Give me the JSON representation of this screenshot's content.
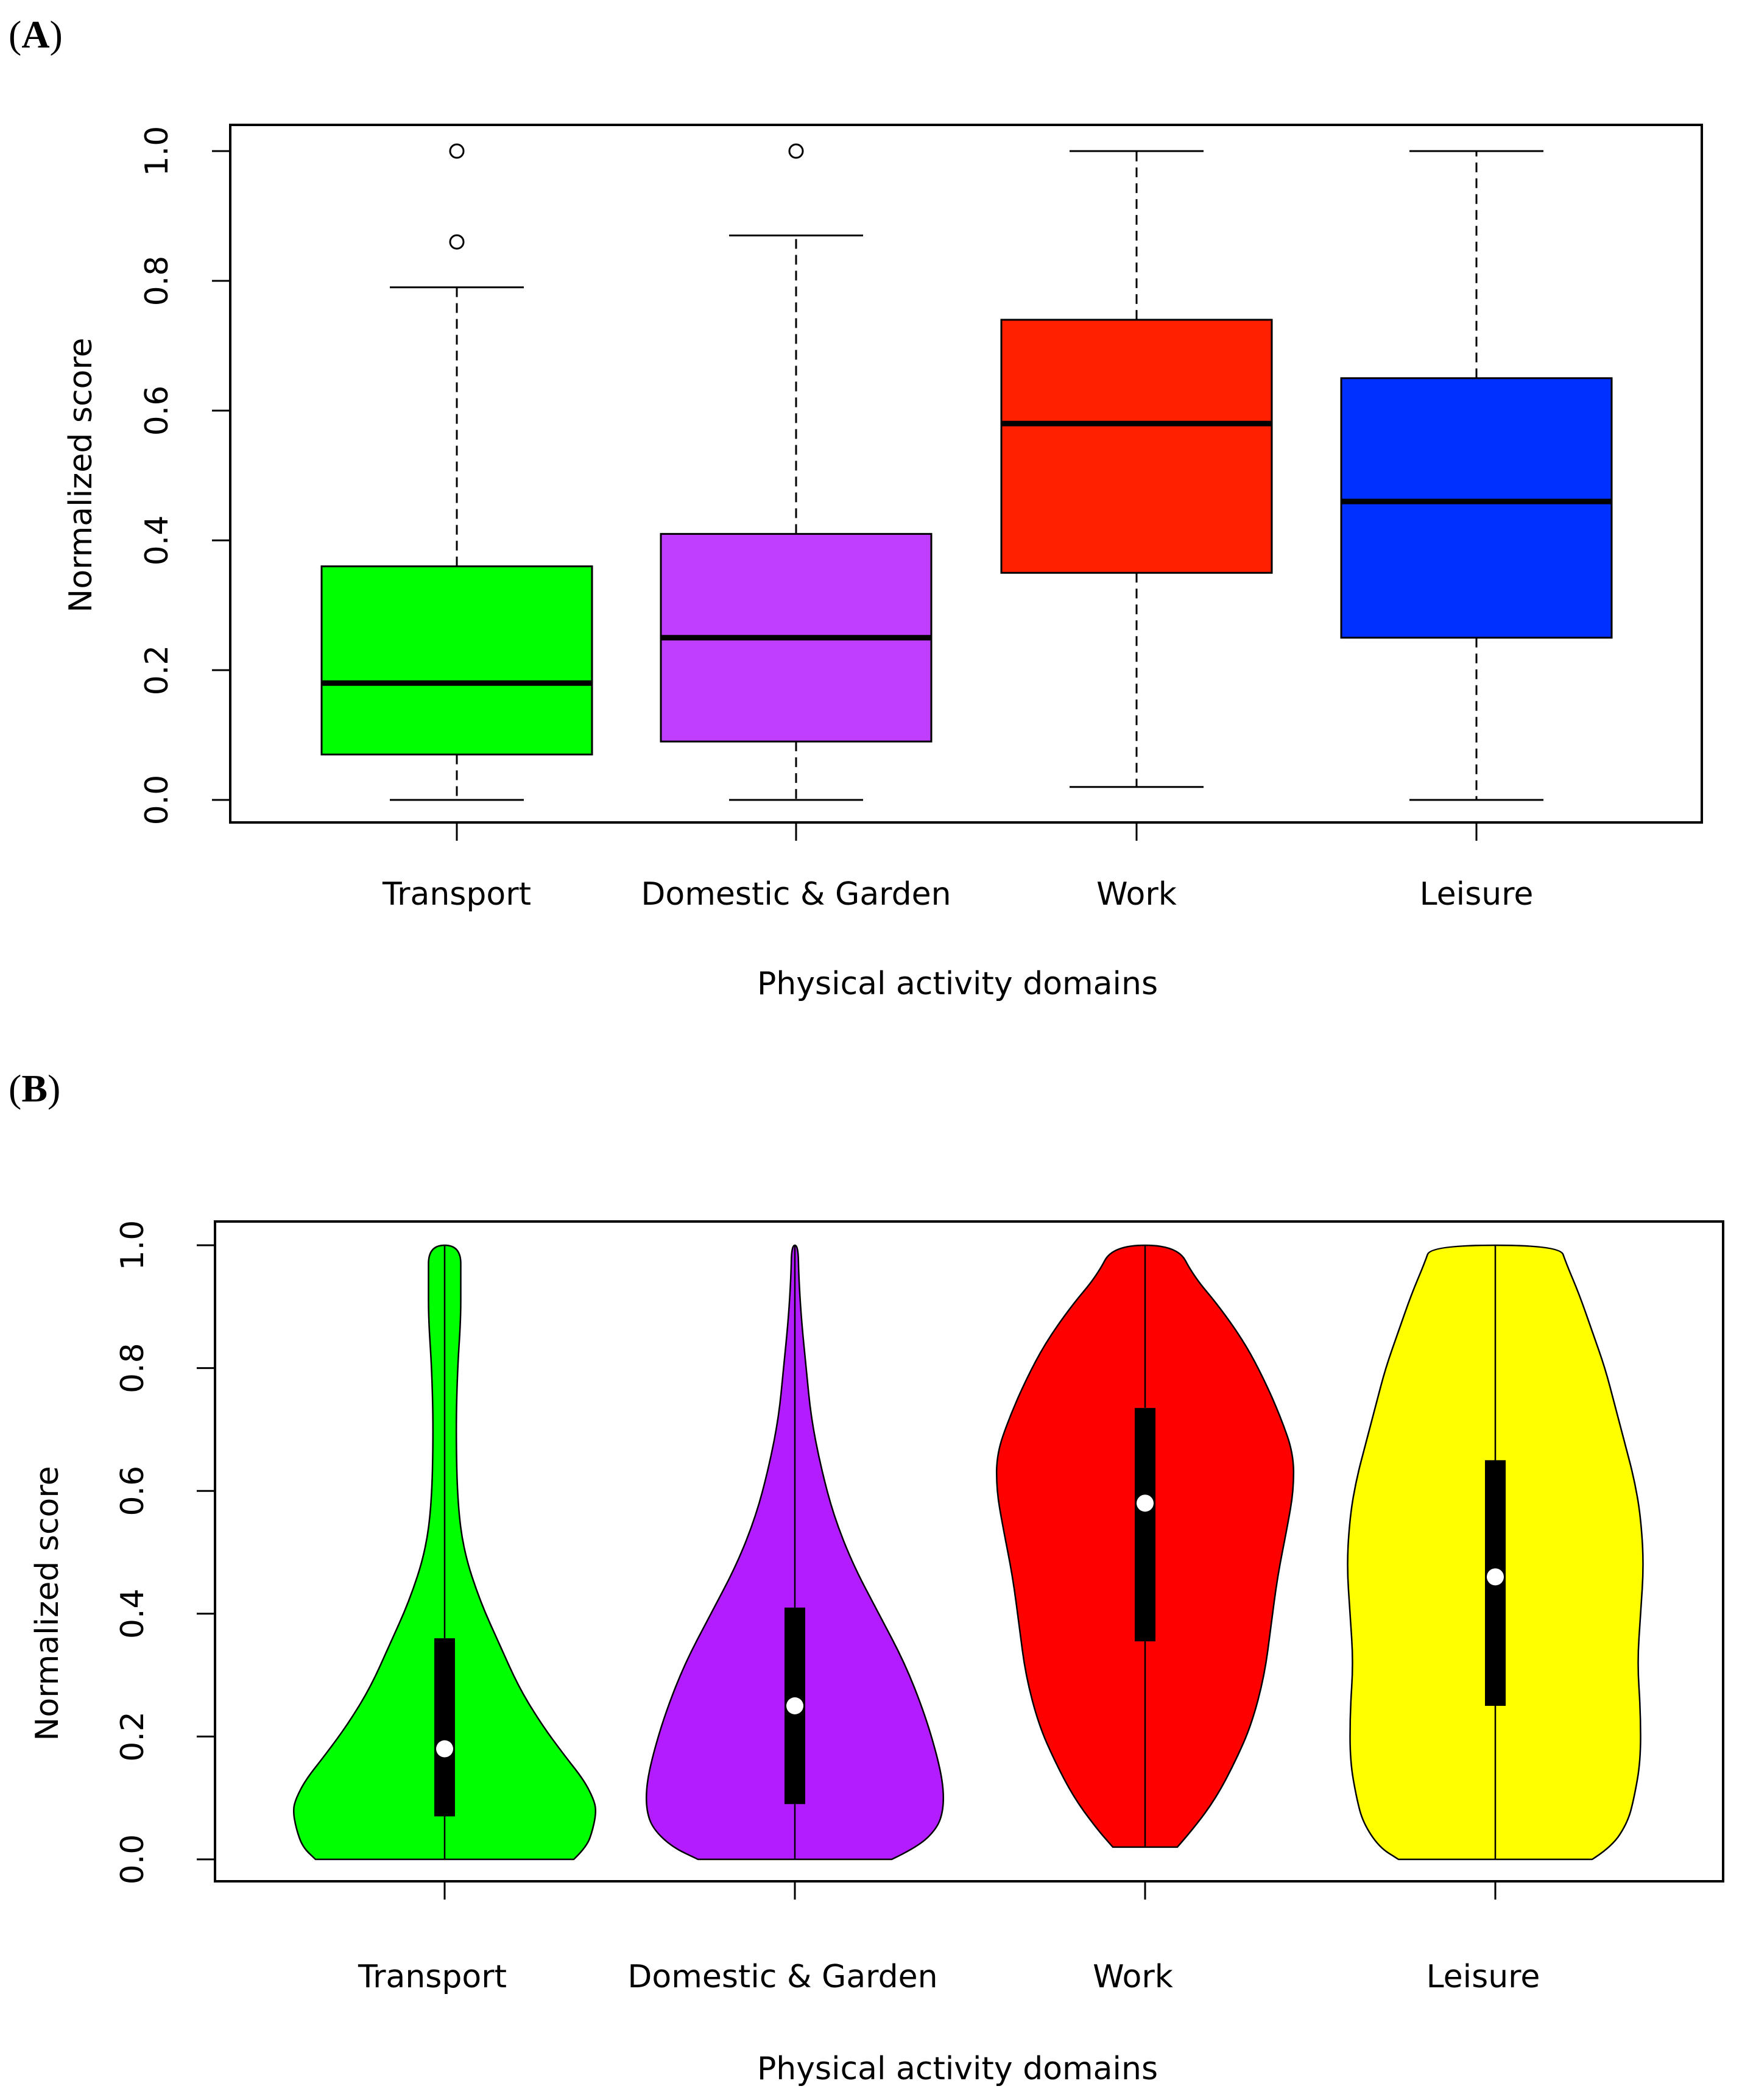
{
  "panels": {
    "a_label": "A",
    "b_label": "B"
  },
  "chart_data": [
    {
      "type": "box",
      "panel": "A",
      "ylabel": "Normalized score",
      "xlabel": "Physical activity domains",
      "ylim": [
        0,
        1
      ],
      "yticks": [
        "0.0",
        "0.2",
        "0.4",
        "0.6",
        "0.8",
        "1.0"
      ],
      "categories": [
        "Transport",
        "Domestic & Garden",
        "Work",
        "Leisure"
      ],
      "colors": [
        "#00ff00",
        "#bf3eff",
        "#ff2000",
        "#0030ff"
      ],
      "boxes": [
        {
          "min": 0.0,
          "q1": 0.07,
          "median": 0.18,
          "q3": 0.36,
          "max": 0.79,
          "outliers": [
            0.86,
            1.0
          ]
        },
        {
          "min": 0.0,
          "q1": 0.09,
          "median": 0.25,
          "q3": 0.41,
          "max": 0.87,
          "outliers": [
            1.0
          ]
        },
        {
          "min": 0.02,
          "q1": 0.35,
          "median": 0.58,
          "q3": 0.74,
          "max": 1.0,
          "outliers": []
        },
        {
          "min": 0.0,
          "q1": 0.25,
          "median": 0.46,
          "q3": 0.65,
          "max": 1.0,
          "outliers": []
        }
      ]
    },
    {
      "type": "violin",
      "panel": "B",
      "ylabel": "Normalized score",
      "xlabel": "Physical activity domains",
      "ylim": [
        0,
        1
      ],
      "yticks": [
        "0.0",
        "0.2",
        "0.4",
        "0.6",
        "0.8",
        "1.0"
      ],
      "categories": [
        "Transport",
        "Domestic & Garden",
        "Work",
        "Leisure"
      ],
      "colors": [
        "#00ff00",
        "#b31cff",
        "#ff0000",
        "#ffff00"
      ],
      "violins": [
        {
          "min": 0.0,
          "q1": 0.07,
          "median": 0.18,
          "q3": 0.36,
          "max": 1.0,
          "profile": [
            [
              0.0,
              0.4
            ],
            [
              0.02,
              0.44
            ],
            [
              0.05,
              0.46
            ],
            [
              0.08,
              0.47
            ],
            [
              0.1,
              0.46
            ],
            [
              0.13,
              0.43
            ],
            [
              0.17,
              0.37
            ],
            [
              0.22,
              0.3
            ],
            [
              0.28,
              0.23
            ],
            [
              0.35,
              0.17
            ],
            [
              0.42,
              0.11
            ],
            [
              0.5,
              0.06
            ],
            [
              0.58,
              0.04
            ],
            [
              0.7,
              0.035
            ],
            [
              0.8,
              0.04
            ],
            [
              0.88,
              0.05
            ],
            [
              0.94,
              0.05
            ],
            [
              1.0,
              0.05
            ]
          ]
        },
        {
          "min": 0.0,
          "q1": 0.09,
          "median": 0.25,
          "q3": 0.41,
          "max": 1.0,
          "profile": [
            [
              0.0,
              0.3
            ],
            [
              0.02,
              0.38
            ],
            [
              0.05,
              0.44
            ],
            [
              0.08,
              0.46
            ],
            [
              0.12,
              0.46
            ],
            [
              0.17,
              0.44
            ],
            [
              0.24,
              0.4
            ],
            [
              0.32,
              0.34
            ],
            [
              0.4,
              0.26
            ],
            [
              0.48,
              0.18
            ],
            [
              0.56,
              0.12
            ],
            [
              0.64,
              0.08
            ],
            [
              0.72,
              0.05
            ],
            [
              0.8,
              0.035
            ],
            [
              0.88,
              0.02
            ],
            [
              0.95,
              0.012
            ],
            [
              1.0,
              0.01
            ]
          ]
        },
        {
          "min": 0.02,
          "q1": 0.355,
          "median": 0.58,
          "q3": 0.735,
          "max": 1.0,
          "profile": [
            [
              0.02,
              0.1
            ],
            [
              0.05,
              0.15
            ],
            [
              0.1,
              0.22
            ],
            [
              0.16,
              0.28
            ],
            [
              0.22,
              0.33
            ],
            [
              0.3,
              0.37
            ],
            [
              0.38,
              0.39
            ],
            [
              0.46,
              0.41
            ],
            [
              0.54,
              0.44
            ],
            [
              0.6,
              0.46
            ],
            [
              0.66,
              0.46
            ],
            [
              0.72,
              0.42
            ],
            [
              0.78,
              0.37
            ],
            [
              0.84,
              0.31
            ],
            [
              0.9,
              0.23
            ],
            [
              0.95,
              0.15
            ],
            [
              1.0,
              0.1
            ]
          ]
        },
        {
          "min": 0.0,
          "q1": 0.25,
          "median": 0.46,
          "q3": 0.65,
          "max": 1.0,
          "profile": [
            [
              0.0,
              0.3
            ],
            [
              0.02,
              0.36
            ],
            [
              0.06,
              0.41
            ],
            [
              0.1,
              0.43
            ],
            [
              0.16,
              0.45
            ],
            [
              0.24,
              0.45
            ],
            [
              0.32,
              0.44
            ],
            [
              0.4,
              0.45
            ],
            [
              0.48,
              0.46
            ],
            [
              0.56,
              0.45
            ],
            [
              0.62,
              0.43
            ],
            [
              0.68,
              0.4
            ],
            [
              0.74,
              0.37
            ],
            [
              0.8,
              0.34
            ],
            [
              0.86,
              0.3
            ],
            [
              0.92,
              0.26
            ],
            [
              0.97,
              0.22
            ],
            [
              1.0,
              0.2
            ]
          ]
        }
      ]
    }
  ]
}
